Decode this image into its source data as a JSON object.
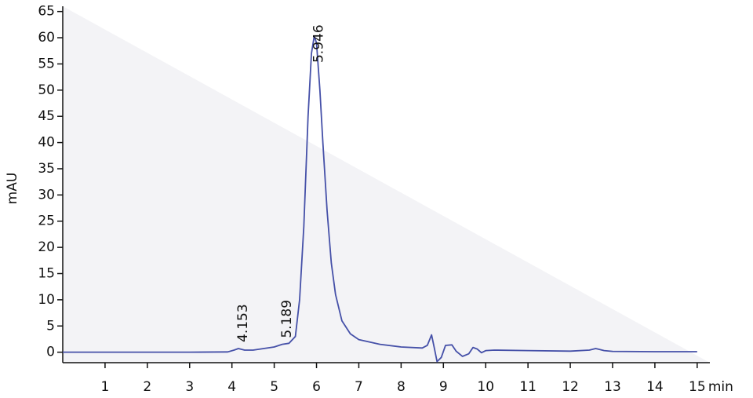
{
  "chart_data": {
    "type": "line",
    "x_label": "min",
    "y_label": "mAU",
    "x": [
      0,
      1,
      2,
      3,
      3.9,
      4.05,
      4.153,
      4.3,
      4.5,
      5.0,
      5.189,
      5.35,
      5.5,
      5.6,
      5.7,
      5.8,
      5.88,
      5.946,
      6.0,
      6.08,
      6.15,
      6.25,
      6.35,
      6.45,
      6.6,
      6.8,
      7.0,
      7.5,
      8.0,
      8.5,
      8.62,
      8.72,
      8.78,
      8.85,
      8.95,
      9.05,
      9.2,
      9.3,
      9.45,
      9.6,
      9.7,
      9.8,
      9.9,
      10.0,
      10.2,
      11.0,
      12.0,
      12.45,
      12.6,
      12.8,
      13.0,
      14.0,
      15.0
    ],
    "values": [
      0,
      0,
      0,
      0,
      0.05,
      0.4,
      0.7,
      0.4,
      0.4,
      1.0,
      1.5,
      1.7,
      3.0,
      10,
      24,
      45,
      57,
      60.3,
      59,
      50,
      40,
      27,
      17,
      11,
      6,
      3.5,
      2.4,
      1.5,
      1.0,
      0.8,
      1.3,
      3.3,
      1.0,
      -1.8,
      -1.0,
      1.3,
      1.4,
      0.2,
      -0.8,
      -0.3,
      0.9,
      0.6,
      -0.1,
      0.3,
      0.4,
      0.3,
      0.2,
      0.4,
      0.7,
      0.3,
      0.15,
      0.1,
      0.1
    ],
    "color": "#4550a8",
    "xlim": [
      0,
      15.3
    ],
    "ylim": [
      -2,
      66
    ],
    "xticks": [
      1,
      2,
      3,
      4,
      5,
      6,
      7,
      8,
      9,
      10,
      11,
      12,
      13,
      14,
      15
    ],
    "yticks": [
      0,
      5,
      10,
      15,
      20,
      25,
      30,
      35,
      40,
      45,
      50,
      55,
      60,
      65
    ],
    "annotations": [
      {
        "x": 4.153,
        "y": 0.7,
        "text": "4.153"
      },
      {
        "x": 5.189,
        "y": 1.5,
        "text": "5.189"
      },
      {
        "x": 5.946,
        "y": 60.3,
        "text": "5.946"
      }
    ]
  }
}
